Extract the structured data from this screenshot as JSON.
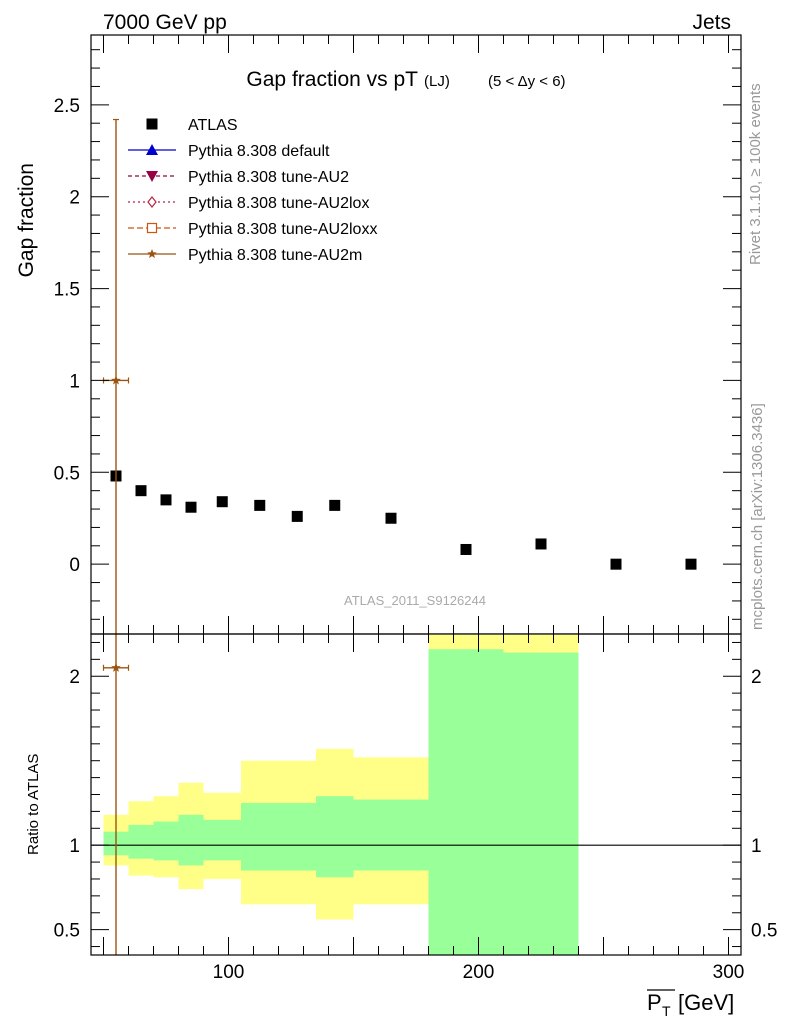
{
  "header": {
    "left": "7000 GeV pp",
    "right": "Jets"
  },
  "side": {
    "rivet": "Rivet 3.1.10, ≥ 100k events",
    "mcplots": "mcplots.cern.ch [arXiv:1306.3436]"
  },
  "chart_data": [
    {
      "type": "scatter",
      "title_main": "Gap fraction vs pT",
      "title_sub": "(LJ)",
      "title_range": "(5 < Δy < 6)",
      "ylabel": "Gap fraction",
      "watermark": "ATLAS_2011_S9126244",
      "xlim": [
        45,
        305
      ],
      "ylim": [
        -0.38,
        2.88
      ],
      "yticks": [
        0,
        0.5,
        1,
        1.5,
        2,
        2.5
      ],
      "ytick_labels": [
        "0",
        "0.5",
        "1",
        "1.5",
        "2",
        "2.5"
      ],
      "legend_position": "top-left",
      "legend": [
        {
          "name": "ATLAS",
          "marker": "square",
          "color": "#000000"
        },
        {
          "name": "Pythia 8.308 default",
          "marker": "triangle-up",
          "color": "#0000cc"
        },
        {
          "name": "Pythia 8.308 tune-AU2",
          "marker": "triangle-down",
          "color": "#990044"
        },
        {
          "name": "Pythia 8.308 tune-AU2lox",
          "marker": "diamond-open",
          "color": "#bb2244"
        },
        {
          "name": "Pythia 8.308 tune-AU2loxx",
          "marker": "square-open",
          "color": "#cc5511"
        },
        {
          "name": "Pythia 8.308 tune-AU2m",
          "marker": "star",
          "color": "#995511"
        }
      ],
      "series": [
        {
          "name": "ATLAS",
          "x": [
            55,
            65,
            75,
            85,
            97.5,
            112.5,
            127.5,
            142.5,
            165,
            195,
            225,
            255,
            285
          ],
          "y": [
            0.48,
            0.4,
            0.35,
            0.31,
            0.34,
            0.32,
            0.26,
            0.32,
            0.25,
            0.08,
            0.11,
            0.0,
            0.0
          ]
        },
        {
          "name": "Pythia 8.308 tune-AU2m",
          "x": [
            55
          ],
          "y": [
            1.0
          ],
          "xerr": [
            5
          ],
          "yerr": [
            1.42
          ],
          "color": "#995511"
        }
      ]
    },
    {
      "type": "area",
      "ylabel": "Ratio to ATLAS",
      "xlabel": "P_T [GeV]",
      "xlabel_main": "P",
      "xlabel_sub": "T",
      "xlabel_unit": "[GeV]",
      "xlim": [
        45,
        305
      ],
      "ylim": [
        0.35,
        2.25
      ],
      "yticks": [
        0.5,
        1,
        2
      ],
      "ytick_labels": [
        "0.5",
        "1",
        "2"
      ],
      "xticks": [
        100,
        200,
        300
      ],
      "xtick_labels": [
        "100",
        "200",
        "300"
      ],
      "reference_line": 1,
      "bands": {
        "edges": [
          50,
          60,
          70,
          80,
          90,
          105,
          120,
          135,
          150,
          180,
          210,
          240
        ],
        "yellow_low": [
          0.88,
          0.82,
          0.81,
          0.74,
          0.8,
          0.65,
          0.65,
          0.56,
          0.65,
          0.35,
          0.35
        ],
        "yellow_high": [
          1.18,
          1.26,
          1.29,
          1.37,
          1.31,
          1.5,
          1.5,
          1.57,
          1.52,
          2.3,
          2.3
        ],
        "green_low": [
          0.94,
          0.92,
          0.91,
          0.88,
          0.91,
          0.85,
          0.85,
          0.81,
          0.85,
          0.35,
          0.35
        ],
        "green_high": [
          1.08,
          1.12,
          1.14,
          1.18,
          1.15,
          1.25,
          1.25,
          1.29,
          1.27,
          2.16,
          2.14
        ]
      },
      "series": [
        {
          "name": "Pythia 8.308 tune-AU2m",
          "x": [
            55
          ],
          "y": [
            2.05
          ],
          "xerr": [
            5
          ],
          "color": "#995511"
        }
      ]
    }
  ]
}
